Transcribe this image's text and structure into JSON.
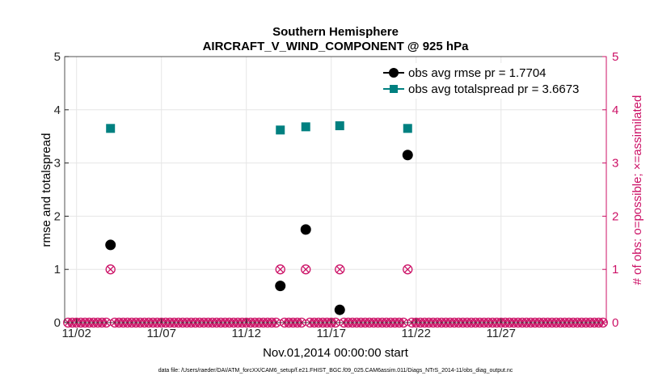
{
  "chart_data": {
    "type": "scatter",
    "title": "Southern Hemisphere",
    "subtitle": "AIRCRAFT_V_WIND_COMPONENT @ 925 hPa",
    "xlabel": "Nov.01,2014 00:00:00 start",
    "ylabel": "rmse and totalspread",
    "y2label": "# of obs: o=possible; ×=assimilated",
    "xlim": [
      1.3,
      33.2
    ],
    "ylim": [
      0,
      5
    ],
    "y2lim": [
      0,
      5
    ],
    "x_ticks": [
      {
        "value": 2,
        "label": "11/02"
      },
      {
        "value": 7,
        "label": "11/07"
      },
      {
        "value": 12,
        "label": "11/12"
      },
      {
        "value": 17,
        "label": "11/17"
      },
      {
        "value": 22,
        "label": "11/22"
      },
      {
        "value": 27,
        "label": "11/27"
      }
    ],
    "y_ticks": [
      "0",
      "1",
      "2",
      "3",
      "4",
      "5"
    ],
    "y2_ticks": [
      "0",
      "1",
      "2",
      "3",
      "4",
      "5"
    ],
    "series": [
      {
        "name": "obs avg rmse pr = 1.7704",
        "color": "#000000",
        "marker": "circle",
        "x": [
          4.0,
          14.0,
          15.5,
          17.5,
          21.5
        ],
        "y": [
          1.46,
          0.69,
          1.75,
          0.24,
          3.15
        ]
      },
      {
        "name": "obs avg totalspread pr = 3.6673",
        "color": "#008080",
        "marker": "square",
        "x": [
          4.0,
          14.0,
          15.5,
          17.5,
          21.5
        ],
        "y": [
          3.65,
          3.62,
          3.68,
          3.7,
          3.65
        ]
      }
    ],
    "obs_counts": {
      "color": "#cc1166",
      "x_start": 1.5,
      "x_end": 33.0,
      "step": 0.25,
      "nonzero": [
        {
          "x": 4.0,
          "y": 1
        },
        {
          "x": 14.0,
          "y": 1
        },
        {
          "x": 15.5,
          "y": 1
        },
        {
          "x": 17.5,
          "y": 1
        },
        {
          "x": 21.5,
          "y": 1
        }
      ]
    },
    "footer": "data file: /Users/raeder/DAI/ATM_forcXX/CAM6_setup/f.e21.FHIST_BGC.f09_025.CAM6assim.011/Diags_NTrS_2014-11/obs_diag_output.nc"
  }
}
